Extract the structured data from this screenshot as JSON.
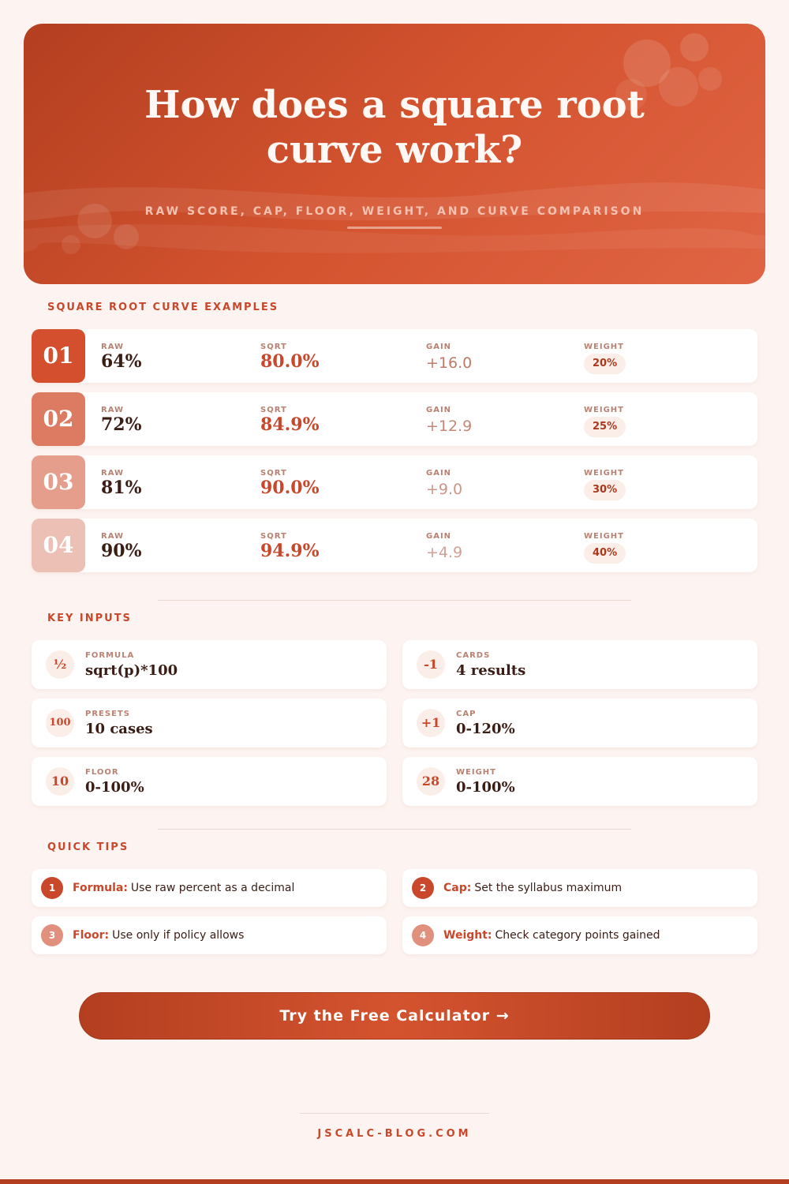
{
  "header": {
    "title": "How does a square root curve work?",
    "subtitle": "RAW SCORE, CAP, FLOOR, WEIGHT, AND CURVE COMPARISON"
  },
  "examples": {
    "heading": "SQUARE ROOT CURVE EXAMPLES",
    "columns": [
      "RAW",
      "SQRT",
      "GAIN",
      "WEIGHT"
    ],
    "rows": [
      {
        "index": "01",
        "raw": "64%",
        "sqrt": "80.0%",
        "gain": "+16.0",
        "weight": "20%"
      },
      {
        "index": "02",
        "raw": "72%",
        "sqrt": "84.9%",
        "gain": "+12.9",
        "weight": "25%"
      },
      {
        "index": "03",
        "raw": "81%",
        "sqrt": "90.0%",
        "gain": "+9.0",
        "weight": "30%"
      },
      {
        "index": "04",
        "raw": "90%",
        "sqrt": "94.9%",
        "gain": "+4.9",
        "weight": "40%"
      }
    ]
  },
  "inputs": {
    "heading": "KEY INPUTS",
    "items": [
      {
        "icon": "½",
        "label": "FORMULA",
        "value": "sqrt(p)*100"
      },
      {
        "icon": "-1",
        "label": "CARDS",
        "value": "4 results"
      },
      {
        "icon": "100",
        "label": "PRESETS",
        "value": "10 cases"
      },
      {
        "icon": "+1",
        "label": "CAP",
        "value": "0-120%"
      },
      {
        "icon": "10",
        "label": "FLOOR",
        "value": "0-100%"
      },
      {
        "icon": "28",
        "label": "WEIGHT",
        "value": "0-100%"
      }
    ]
  },
  "tips": {
    "heading": "QUICK TIPS",
    "items": [
      {
        "number": "1",
        "label": "Formula:",
        "text": "Use raw percent as a decimal"
      },
      {
        "number": "2",
        "label": "Cap:",
        "text": "Set the syllabus maximum"
      },
      {
        "number": "3",
        "label": "Floor:",
        "text": "Use only if policy allows"
      },
      {
        "number": "4",
        "label": "Weight:",
        "text": "Check category points gained"
      }
    ]
  },
  "cta": "Try the Free Calculator →",
  "footer": "JSCALC-BLOG.COM"
}
